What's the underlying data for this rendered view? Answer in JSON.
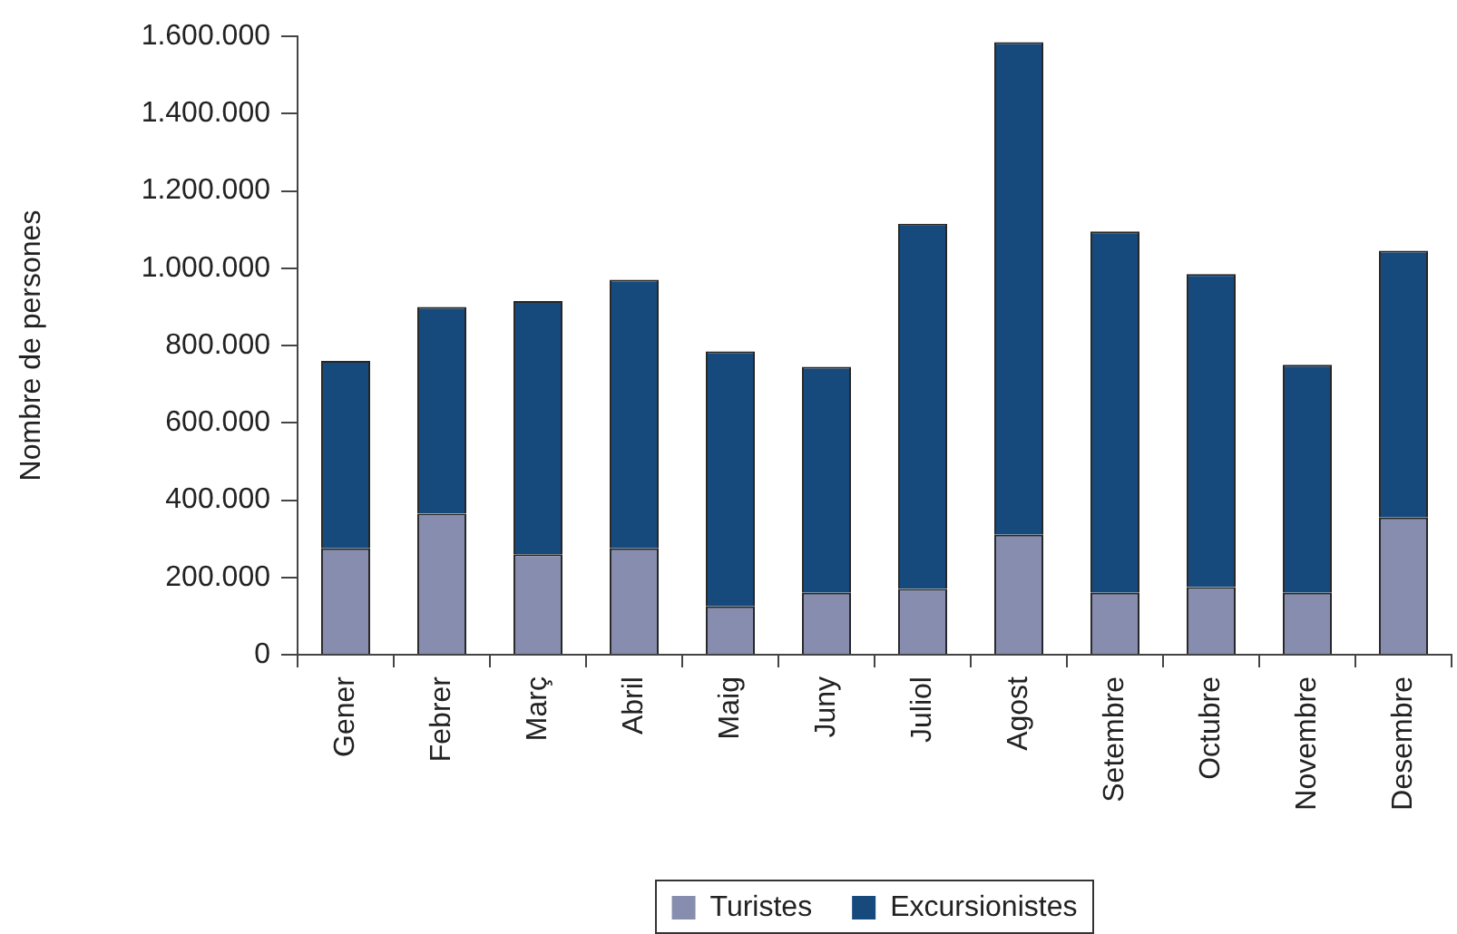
{
  "chart_data": {
    "type": "bar",
    "stacked": true,
    "ylabel": "Nombre de persones",
    "categories": [
      "Gener",
      "Febrer",
      "Març",
      "Abril",
      "Maig",
      "Juny",
      "Juliol",
      "Agost",
      "Setembre",
      "Octubre",
      "Novembre",
      "Desembre"
    ],
    "series": [
      {
        "name": "Turistes",
        "color": "#878dae",
        "values": [
          275000,
          365000,
          260000,
          275000,
          125000,
          160000,
          170000,
          310000,
          160000,
          175000,
          160000,
          355000
        ]
      },
      {
        "name": "Excursionistes",
        "color": "#174a7c",
        "values": [
          485000,
          535000,
          655000,
          695000,
          660000,
          585000,
          945000,
          1275000,
          935000,
          810000,
          590000,
          690000
        ]
      }
    ],
    "ylim": [
      0,
      1600000
    ],
    "yticks": [
      0,
      {
        "value": 200000,
        "label": "200.000"
      },
      {
        "value": 400000,
        "label": "400.000"
      },
      {
        "value": 600000,
        "label": "600.000"
      },
      {
        "value": 800000,
        "label": "800.000"
      },
      {
        "value": 1000000,
        "label": "1.000.000"
      },
      {
        "value": 1200000,
        "label": "1.200.000"
      },
      {
        "value": 1400000,
        "label": "1.400.000"
      },
      {
        "value": 1600000,
        "label": "1.600.000"
      }
    ],
    "grid": false,
    "legend": "bottom"
  }
}
